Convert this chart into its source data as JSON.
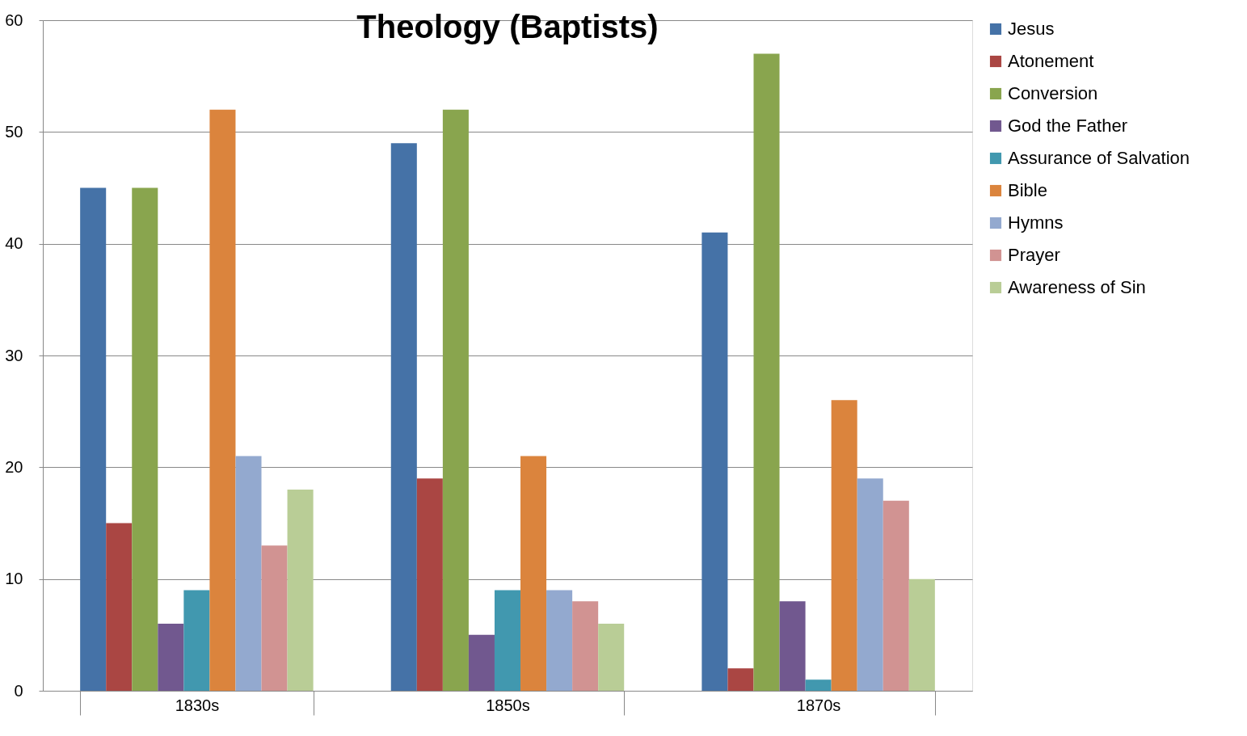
{
  "chart_data": {
    "type": "bar",
    "title": "Theology (Baptists)",
    "categories": [
      "1830s",
      "1850s",
      "1870s"
    ],
    "series": [
      {
        "name": "Jesus",
        "color": "#4572a7",
        "values": [
          45,
          49,
          41
        ]
      },
      {
        "name": "Atonement",
        "color": "#aa4643",
        "values": [
          15,
          19,
          2
        ]
      },
      {
        "name": "Conversion",
        "color": "#89a54e",
        "values": [
          45,
          52,
          57
        ]
      },
      {
        "name": "God the Father",
        "color": "#71588f",
        "values": [
          6,
          5,
          8
        ]
      },
      {
        "name": "Assurance of Salvation",
        "color": "#4198af",
        "values": [
          9,
          9,
          1
        ]
      },
      {
        "name": "Bible",
        "color": "#db843d",
        "values": [
          52,
          21,
          26
        ]
      },
      {
        "name": "Hymns",
        "color": "#93a9cf",
        "values": [
          21,
          9,
          19
        ]
      },
      {
        "name": "Prayer",
        "color": "#d19392",
        "values": [
          13,
          8,
          17
        ]
      },
      {
        "name": "Awareness of Sin",
        "color": "#b9cd96",
        "values": [
          18,
          6,
          10
        ]
      }
    ],
    "ylim": [
      0,
      60
    ],
    "yticks": [
      0,
      10,
      20,
      30,
      40,
      50,
      60
    ],
    "grid": "y",
    "legend": "right"
  }
}
